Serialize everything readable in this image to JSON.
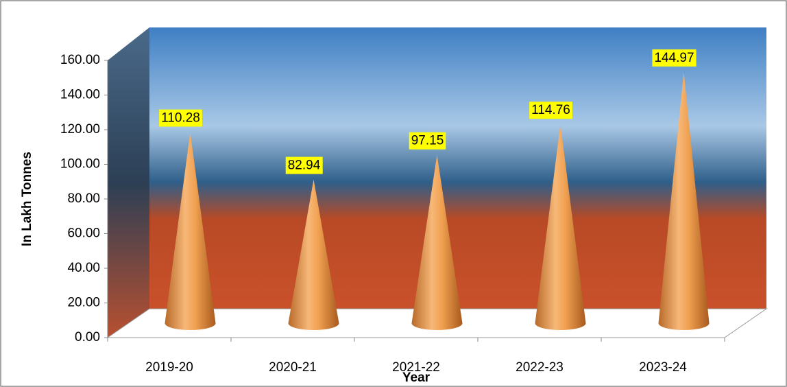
{
  "chart_data": {
    "type": "cone",
    "categories": [
      "2019-20",
      "2020-21",
      "2021-22",
      "2022-23",
      "2023-24"
    ],
    "values": [
      110.28,
      82.94,
      97.15,
      114.76,
      144.97
    ],
    "color": "#f0a050",
    "label_color": "#ffff00",
    "y_label": "In Lakh Tonnes",
    "x_label": "Year",
    "ylim": [
      0,
      160
    ],
    "yticks": [
      {
        "value": 0,
        "label": "0.00"
      },
      {
        "value": 20,
        "label": "20.00"
      },
      {
        "value": 40,
        "label": "40.00"
      },
      {
        "value": 60,
        "label": "60.00"
      },
      {
        "value": 80,
        "label": "80.00"
      },
      {
        "value": 100,
        "label": "100.00"
      },
      {
        "value": 120,
        "label": "120.00"
      },
      {
        "value": 140,
        "label": "140.00"
      },
      {
        "value": 160,
        "label": "160.00"
      }
    ]
  }
}
